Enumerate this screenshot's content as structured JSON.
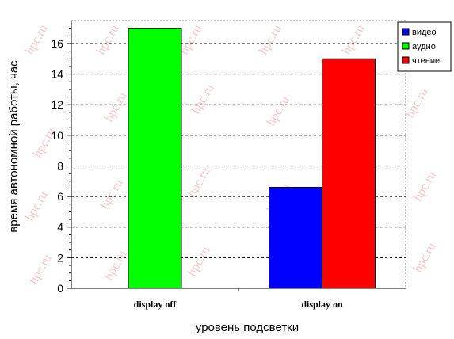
{
  "watermark": "hpc.ru",
  "chart_data": {
    "type": "bar",
    "categories": [
      "display off",
      "display on"
    ],
    "series": [
      {
        "name": "видео",
        "values": [
          0,
          6.6
        ],
        "color": "#0000ff"
      },
      {
        "name": "аудио",
        "values": [
          17,
          0
        ],
        "color": "#00ff00"
      },
      {
        "name": "чтение",
        "values": [
          0,
          15
        ],
        "color": "#ff0000"
      }
    ],
    "xlabel": "уровень подсветки",
    "ylabel": "время автономной работы, час",
    "ylim": [
      0,
      17.5
    ],
    "yticks": [
      0,
      2,
      4,
      6,
      8,
      10,
      12,
      14,
      16
    ],
    "grid": true,
    "legend_position": "top-right"
  }
}
